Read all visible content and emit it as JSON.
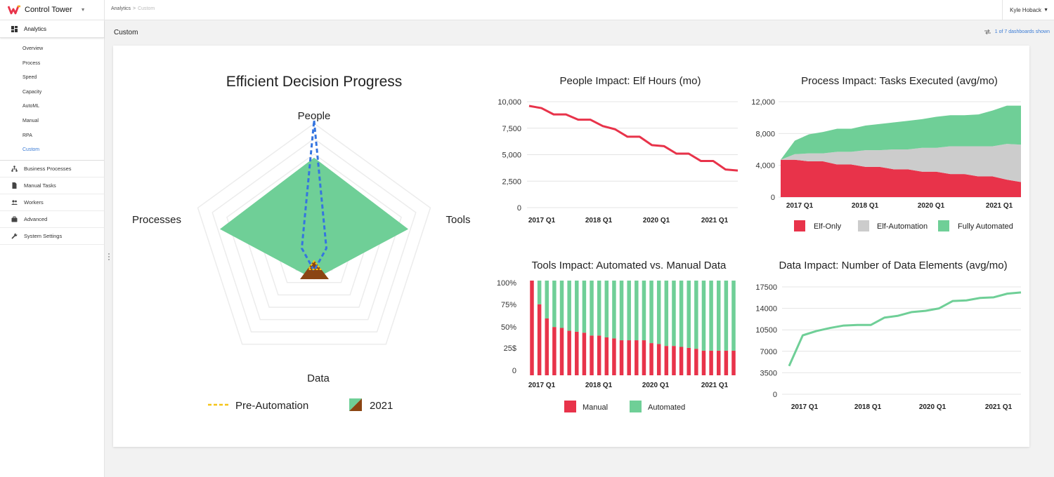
{
  "app": {
    "name": "Control Tower"
  },
  "sidebar": {
    "active_section": "Analytics",
    "sub_items": [
      "Overview",
      "Process",
      "Speed",
      "Capacity",
      "AutoML",
      "Manual",
      "RPA",
      "Custom"
    ],
    "items": [
      {
        "label": "Business Processes",
        "icon": "hierarchy-icon"
      },
      {
        "label": "Manual Tasks",
        "icon": "document-icon"
      },
      {
        "label": "Workers",
        "icon": "people-icon"
      },
      {
        "label": "Advanced",
        "icon": "briefcase-icon"
      },
      {
        "label": "System Settings",
        "icon": "wrench-icon"
      }
    ]
  },
  "header": {
    "breadcrumb": [
      "Analytics",
      "Custom"
    ],
    "user": "Kyle Hoback",
    "page_title": "Custom",
    "dashboards_shown": "1 of 7 dashboards shown"
  },
  "colors": {
    "red": "#e8334a",
    "green": "#6fcf97",
    "gray": "#cccccc",
    "blue": "#3575e0",
    "yellow": "#f5c518",
    "brown": "#8b4513",
    "accent": "#3a7bd5"
  },
  "chart_data": [
    {
      "type": "radar",
      "title": "Efficient Decision Progress",
      "axes": [
        "People",
        "Tools",
        "Data",
        "Processes"
      ],
      "max": 6,
      "series": [
        {
          "name": "2021",
          "values": [
            4.3,
            4.6,
            1.3,
            4.6
          ]
        },
        {
          "name": "Pre-Automation",
          "values": [
            6.0,
            0.6,
            0.9,
            0.6
          ]
        }
      ],
      "legend": [
        "Pre-Automation",
        "2021"
      ]
    },
    {
      "type": "line",
      "title": "People Impact: Elf Hours (mo)",
      "x": [
        "2017 Q1",
        "2017 Q2",
        "2017 Q3",
        "2017 Q4",
        "2018 Q1",
        "2018 Q2",
        "2018 Q3",
        "2018 Q4",
        "2019 Q1",
        "2019 Q2",
        "2019 Q3",
        "2019 Q4",
        "2020 Q1",
        "2020 Q2",
        "2020 Q3",
        "2020 Q4",
        "2021 Q1",
        "2021 Q2"
      ],
      "xticks": [
        "2017 Q1",
        "2018 Q1",
        "2020 Q1",
        "2021 Q1"
      ],
      "values": [
        9600,
        9400,
        8800,
        8800,
        8300,
        8300,
        7700,
        7400,
        6700,
        6700,
        5900,
        5800,
        5100,
        5100,
        4400,
        4400,
        3600,
        3500
      ],
      "ylim": [
        0,
        10000
      ],
      "yticks": [
        "10,000",
        "7,500",
        "5,000",
        "2,500",
        "0"
      ]
    },
    {
      "type": "area",
      "title": "Process Impact: Tasks Executed (avg/mo)",
      "x": [
        "2017 Q1",
        "2017 Q2",
        "2017 Q3",
        "2017 Q4",
        "2018 Q1",
        "2018 Q2",
        "2018 Q3",
        "2018 Q4",
        "2019 Q1",
        "2019 Q2",
        "2019 Q3",
        "2019 Q4",
        "2020 Q1",
        "2020 Q2",
        "2020 Q3",
        "2020 Q4",
        "2021 Q1",
        "2021 Q2"
      ],
      "xticks": [
        "2017 Q1",
        "2018 Q1",
        "2020 Q1",
        "2021 Q1"
      ],
      "series": [
        {
          "name": "Elf-Only",
          "values": [
            4700,
            4700,
            4500,
            4500,
            4100,
            4100,
            3800,
            3800,
            3500,
            3500,
            3200,
            3200,
            2900,
            2900,
            2600,
            2600,
            2200,
            1900
          ]
        },
        {
          "name": "Elf-Automation",
          "values": [
            0,
            700,
            1000,
            1000,
            1600,
            1600,
            2100,
            2100,
            2500,
            2500,
            3000,
            3000,
            3500,
            3500,
            3800,
            3800,
            4500,
            4700
          ]
        },
        {
          "name": "Fully Automated",
          "values": [
            0,
            1700,
            2400,
            2700,
            2900,
            2900,
            3100,
            3300,
            3400,
            3600,
            3600,
            3900,
            3900,
            3900,
            4000,
            4500,
            4800,
            4900
          ]
        }
      ],
      "ylim": [
        0,
        12000
      ],
      "yticks": [
        "12,000",
        "8,000",
        "4,000",
        "0"
      ],
      "legend": [
        "Elf-Only",
        "Elf-Automation",
        "Fully Automated"
      ]
    },
    {
      "type": "bar",
      "stacked": true,
      "title": "Tools Impact: Automated vs. Manual Data",
      "xticks": [
        "2017 Q1",
        "2018 Q1",
        "2020 Q1",
        "2021 Q1"
      ],
      "series": [
        {
          "name": "Manual",
          "values": [
            100,
            75,
            60,
            51,
            50,
            47,
            46,
            45,
            42,
            42,
            40,
            39,
            37,
            37,
            37,
            37,
            34,
            33,
            31,
            31,
            30,
            29,
            28,
            26,
            26,
            26,
            26,
            26
          ]
        },
        {
          "name": "Automated",
          "values": [
            0,
            25,
            40,
            49,
            50,
            53,
            54,
            55,
            58,
            58,
            60,
            61,
            63,
            63,
            63,
            63,
            66,
            67,
            69,
            69,
            70,
            71,
            72,
            74,
            74,
            74,
            74,
            74
          ]
        }
      ],
      "ylim": [
        0,
        100
      ],
      "yticks": [
        "100%",
        "75%",
        "50%",
        "25$",
        "0"
      ],
      "legend": [
        "Manual",
        "Automated"
      ]
    },
    {
      "type": "line",
      "title": "Data Impact: Number of Data Elements (avg/mo)",
      "x": [
        "2017 Q1",
        "2017 Q2",
        "2017 Q3",
        "2017 Q4",
        "2018 Q1",
        "2018 Q2",
        "2018 Q3",
        "2018 Q4",
        "2019 Q1",
        "2019 Q2",
        "2019 Q3",
        "2019 Q4",
        "2020 Q1",
        "2020 Q2",
        "2020 Q3",
        "2020 Q4",
        "2021 Q1",
        "2021 Q2"
      ],
      "xticks": [
        "2017 Q1",
        "2018 Q1",
        "2020 Q1",
        "2021 Q1"
      ],
      "values": [
        4600,
        9600,
        10300,
        10800,
        11200,
        11300,
        11300,
        12500,
        12800,
        13400,
        13600,
        14000,
        15200,
        15300,
        15700,
        15800,
        16400,
        16600
      ],
      "ylim": [
        0,
        17500
      ],
      "yticks": [
        "17500",
        "14000",
        "10500",
        "7000",
        "3500",
        "0"
      ]
    }
  ]
}
